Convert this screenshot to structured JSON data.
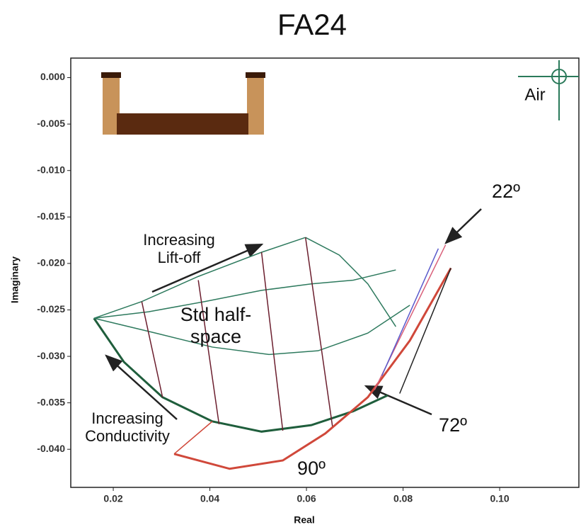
{
  "chart_data": {
    "type": "line",
    "title": "FA24",
    "x_label": "Real",
    "y_label": "Imaginary",
    "xlim": [
      0.0112,
      0.1164
    ],
    "ylim": [
      -0.0441,
      0.0021
    ],
    "xticks": [
      0.02,
      0.04,
      0.06,
      0.08,
      {
        "value": 0.1,
        "label": "0.10"
      }
    ],
    "yticks": [
      {
        "value": 0,
        "label": "0.000"
      },
      {
        "value": -0.005,
        "label": "-0.005"
      },
      {
        "value": -0.01,
        "label": "-0.010"
      },
      {
        "value": -0.015,
        "label": "-0.015"
      },
      {
        "value": -0.02,
        "label": "-0.020"
      },
      {
        "value": -0.025,
        "label": "-0.025"
      },
      {
        "value": -0.03,
        "label": "-0.030"
      },
      {
        "value": -0.035,
        "label": "-0.035"
      },
      {
        "value": -0.04,
        "label": "-0.040"
      }
    ],
    "series": [
      {
        "color": "#1f5e3c",
        "x": [
          0.016,
          0.0222,
          0.0302,
          0.0405,
          0.0507,
          0.061,
          0.0697,
          0.0768
        ],
        "values": [
          -0.0259,
          -0.0306,
          -0.0344,
          -0.037,
          -0.0381,
          -0.0374,
          -0.0359,
          -0.0342
        ]
      },
      {
        "color": "#2e7a5e",
        "x": [
          0.016,
          0.0259,
          0.0376,
          0.0507,
          0.0598
        ],
        "values": [
          -0.0259,
          -0.0241,
          -0.0214,
          -0.0188,
          -0.0172
        ]
      },
      {
        "color": "#2e7a5e",
        "x": [
          0.0598,
          0.0668,
          0.0727,
          0.0785
        ],
        "values": [
          -0.0172,
          -0.0191,
          -0.0222,
          -0.0268
        ]
      },
      {
        "color": "#2e7a5e",
        "x": [
          0.016,
          0.0288,
          0.0405,
          0.0522,
          0.0624,
          0.0727,
          0.0814
        ],
        "values": [
          -0.0259,
          -0.0275,
          -0.029,
          -0.0298,
          -0.0294,
          -0.0275,
          -0.0245
        ]
      },
      {
        "color": "#2e7a5e",
        "x": [
          0.016,
          0.0273,
          0.039,
          0.0507,
          0.061,
          0.0697,
          0.0785
        ],
        "values": [
          -0.0259,
          -0.0252,
          -0.0241,
          -0.0229,
          -0.0222,
          -0.0218,
          -0.0207
        ]
      },
      {
        "color": "#6b1e2e",
        "x": [
          0.0376,
          0.0419
        ],
        "values": [
          -0.0218,
          -0.0373
        ]
      },
      {
        "color": "#6b1e2e",
        "x": [
          0.0507,
          0.0551
        ],
        "values": [
          -0.0188,
          -0.038
        ]
      },
      {
        "color": "#6b1e2e",
        "x": [
          0.0598,
          0.0654
        ],
        "values": [
          -0.0172,
          -0.0376
        ]
      },
      {
        "color": "#6b1e2e",
        "x": [
          0.0259,
          0.0302
        ],
        "values": [
          -0.0241,
          -0.0344
        ]
      },
      {
        "color": "#d0483a",
        "x": [
          0.0326,
          0.0441,
          0.0551,
          0.0639,
          0.0727,
          0.0814,
          0.0899
        ],
        "values": [
          -0.0405,
          -0.0421,
          -0.0412,
          -0.0383,
          -0.0344,
          -0.0283,
          -0.0205
        ]
      },
      {
        "color": "#d9607a",
        "x": [
          0.0741,
          0.0888
        ],
        "values": [
          -0.0336,
          -0.018
        ]
      },
      {
        "color": "#5a5acc",
        "x": [
          0.0756,
          0.0873
        ],
        "values": [
          -0.0321,
          -0.0184
        ]
      },
      {
        "color": "#222222",
        "x": [
          0.0793,
          0.0899
        ],
        "values": [
          -0.034,
          -0.0205
        ]
      },
      {
        "color": "#d0483a",
        "x": [
          0.0326,
          0.0405
        ],
        "values": [
          -0.0405,
          -0.037
        ]
      }
    ],
    "annotations": [
      [
        "Increasing",
        "Lift-off"
      ],
      [
        "Std half-",
        "space"
      ],
      [
        "Increasing",
        "Conductivity"
      ],
      [
        "22º"
      ],
      [
        "72º"
      ],
      [
        "90º"
      ],
      [
        "Air"
      ]
    ]
  }
}
